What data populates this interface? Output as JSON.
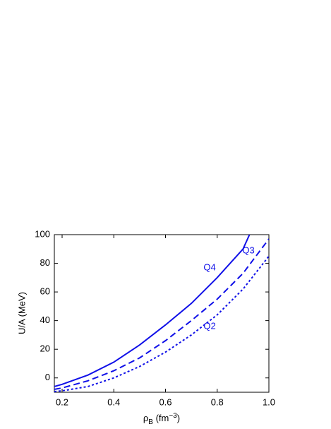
{
  "chart_data": {
    "type": "line",
    "y_label": "U/A (MeV)",
    "x_label_parts": [
      "ρ",
      "B",
      " (fm",
      "−3",
      ")"
    ],
    "xlim": [
      0.17,
      1.0
    ],
    "ylim": [
      -10,
      100
    ],
    "xticks": [
      0.2,
      0.4,
      0.6,
      0.8,
      {
        "value": 1,
        "label": "1.0"
      }
    ],
    "yticks": [
      0,
      20,
      40,
      60,
      80,
      100
    ],
    "series": [
      {
        "name": "Q4",
        "color": "#1010e8",
        "dash": "solid",
        "x": [
          0.17,
          0.2,
          0.3,
          0.4,
          0.5,
          0.6,
          0.7,
          0.8,
          0.9,
          0.925
        ],
        "values": [
          -6,
          -4.5,
          2,
          11,
          23,
          37,
          52,
          70,
          90,
          100
        ]
      },
      {
        "name": "Q3",
        "color": "#1010e8",
        "dash": "dashed",
        "x": [
          0.17,
          0.2,
          0.3,
          0.4,
          0.5,
          0.6,
          0.7,
          0.8,
          0.9,
          1.0
        ],
        "values": [
          -8,
          -7,
          -2,
          5,
          14,
          26,
          40,
          55,
          73,
          97
        ]
      },
      {
        "name": "Q2",
        "color": "#1010e8",
        "dash": "dotted",
        "x": [
          0.17,
          0.2,
          0.3,
          0.4,
          0.5,
          0.6,
          0.7,
          0.8,
          0.9,
          1.0
        ],
        "values": [
          -9.5,
          -9,
          -6,
          0,
          8,
          18,
          30,
          44,
          62,
          85
        ]
      }
    ]
  }
}
